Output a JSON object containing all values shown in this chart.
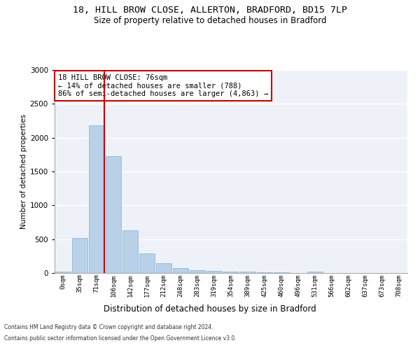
{
  "title_line1": "18, HILL BROW CLOSE, ALLERTON, BRADFORD, BD15 7LP",
  "title_line2": "Size of property relative to detached houses in Bradford",
  "xlabel": "Distribution of detached houses by size in Bradford",
  "ylabel": "Number of detached properties",
  "bar_color": "#b8d0e8",
  "bar_edge_color": "#8ab0d0",
  "background_color": "#eef2f8",
  "fig_background_color": "#ffffff",
  "grid_color": "#ffffff",
  "categories": [
    "0sqm",
    "35sqm",
    "71sqm",
    "106sqm",
    "142sqm",
    "177sqm",
    "212sqm",
    "248sqm",
    "283sqm",
    "319sqm",
    "354sqm",
    "389sqm",
    "425sqm",
    "460sqm",
    "496sqm",
    "531sqm",
    "566sqm",
    "602sqm",
    "637sqm",
    "673sqm",
    "708sqm"
  ],
  "values": [
    20,
    520,
    2180,
    1730,
    635,
    285,
    150,
    75,
    45,
    30,
    25,
    20,
    15,
    10,
    5,
    20,
    5,
    3,
    2,
    1,
    1
  ],
  "ylim": [
    0,
    3000
  ],
  "yticks": [
    0,
    500,
    1000,
    1500,
    2000,
    2500,
    3000
  ],
  "property_line_bin": 2,
  "annotation_text": "18 HILL BROW CLOSE: 76sqm\n← 14% of detached houses are smaller (788)\n86% of semi-detached houses are larger (4,863) →",
  "annotation_box_color": "#ffffff",
  "annotation_box_edge_color": "#cc0000",
  "footer_line1": "Contains HM Land Registry data © Crown copyright and database right 2024.",
  "footer_line2": "Contains public sector information licensed under the Open Government Licence v3.0.",
  "red_line_color": "#cc0000"
}
